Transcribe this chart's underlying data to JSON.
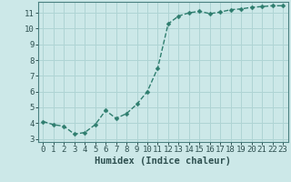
{
  "x": [
    0,
    1,
    2,
    3,
    4,
    5,
    6,
    7,
    8,
    9,
    10,
    11,
    12,
    13,
    14,
    15,
    16,
    17,
    18,
    19,
    20,
    21,
    22,
    23
  ],
  "y": [
    4.1,
    3.9,
    3.8,
    3.3,
    3.4,
    3.9,
    4.8,
    4.3,
    4.6,
    5.2,
    6.0,
    7.5,
    10.3,
    10.8,
    11.0,
    11.1,
    10.95,
    11.05,
    11.2,
    11.25,
    11.35,
    11.4,
    11.45,
    11.45
  ],
  "line_color": "#2e7d6e",
  "marker": "D",
  "marker_size": 2.5,
  "bg_color": "#cce8e8",
  "grid_color": "#afd4d4",
  "grid_color_minor": "#c4e0e0",
  "xlabel": "Humidex (Indice chaleur)",
  "xlim": [
    -0.5,
    23.5
  ],
  "ylim": [
    2.8,
    11.7
  ],
  "yticks": [
    3,
    4,
    5,
    6,
    7,
    8,
    9,
    10,
    11
  ],
  "xticks": [
    0,
    1,
    2,
    3,
    4,
    5,
    6,
    7,
    8,
    9,
    10,
    11,
    12,
    13,
    14,
    15,
    16,
    17,
    18,
    19,
    20,
    21,
    22,
    23
  ],
  "tick_fontsize": 6.5,
  "xlabel_fontsize": 7.5,
  "spine_color": "#4a8080",
  "tick_color": "#2e5050"
}
